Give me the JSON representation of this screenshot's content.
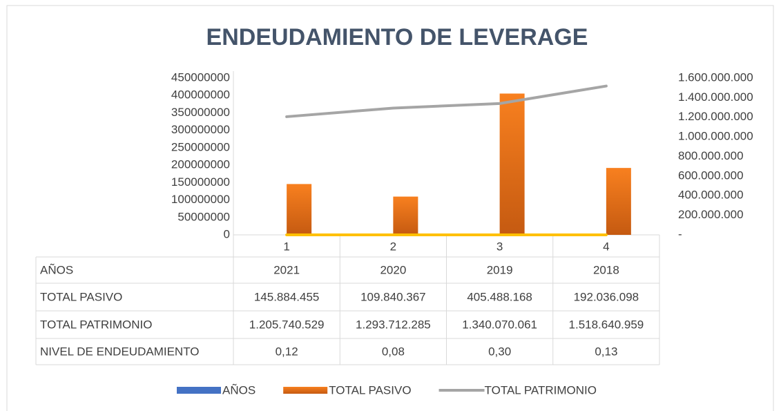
{
  "chart_data": {
    "type": "bar",
    "title": "ENDEUDAMIENTO DE LEVERAGE",
    "categories": [
      "1",
      "2",
      "3",
      "4"
    ],
    "series": [
      {
        "name": "AÑOS",
        "type": "bar",
        "color": "#4472c4",
        "values": [
          2021,
          2020,
          2019,
          2018
        ]
      },
      {
        "name": "TOTAL PASIVO",
        "type": "bar",
        "color": "#ed7d31",
        "values": [
          145884455,
          109840367,
          405488168,
          192036098
        ],
        "value_labels": [
          "145.884.455",
          "109.840.367",
          "405.488.168",
          "192.036.098"
        ]
      },
      {
        "name": "TOTAL PATRIMONIO",
        "type": "line",
        "axis": "y2",
        "color": "#a5a5a5",
        "values": [
          1205740529,
          1293712285,
          1340070061,
          1518640959
        ],
        "value_labels": [
          "1.205.740.529",
          "1.293.712.285",
          "1.340.070.061",
          "1.518.640.959"
        ]
      },
      {
        "name": "NIVEL DE ENDEUDAMIENTO",
        "type": "line",
        "color": "#ffc000",
        "in_legend": false,
        "values": [
          0.12,
          0.08,
          0.3,
          0.13
        ],
        "value_labels": [
          "0,12",
          "0,08",
          "0,30",
          "0,13"
        ]
      }
    ],
    "ylim": [
      0,
      450000000
    ],
    "yticks": [
      0,
      50000000,
      100000000,
      150000000,
      200000000,
      250000000,
      300000000,
      350000000,
      400000000,
      450000000
    ],
    "y2lim": [
      0,
      1600000000
    ],
    "y2ticks": [
      {
        "value": 0,
        "label": "-"
      },
      {
        "value": 200000000,
        "label": "200.000.000"
      },
      {
        "value": 400000000,
        "label": "400.000.000"
      },
      {
        "value": 600000000,
        "label": "600.000.000"
      },
      {
        "value": 800000000,
        "label": "800.000.000"
      },
      {
        "value": 1000000000,
        "label": "1.000.000.000"
      },
      {
        "value": 1200000000,
        "label": "1.200.000.000"
      },
      {
        "value": 1400000000,
        "label": "1.400.000.000"
      },
      {
        "value": 1600000000,
        "label": "1.600.000.000"
      }
    ],
    "grid": false,
    "legend": "bottom",
    "data_table": true
  }
}
